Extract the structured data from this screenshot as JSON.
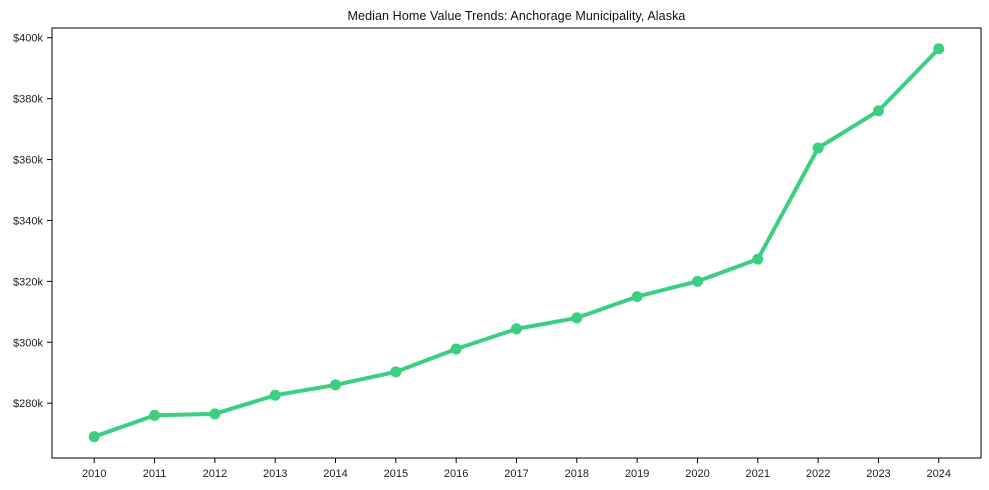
{
  "figure": {
    "background": "#ffffff",
    "spine_color": "#000000",
    "tick_color": "#000000",
    "tick_label_color": "#1f1f1f",
    "title_color": "#111111"
  },
  "chart_data": {
    "type": "line",
    "title": "Median Home Value Trends: Anchorage Municipality, Alaska",
    "xlabel": "",
    "ylabel": "",
    "grid": false,
    "legend": false,
    "xlim": [
      2009.3,
      2024.7
    ],
    "ylim": [
      262000,
      403200
    ],
    "xticks": [
      2010,
      2011,
      2012,
      2013,
      2014,
      2015,
      2016,
      2017,
      2018,
      2019,
      2020,
      2021,
      2022,
      2023,
      2024
    ],
    "xtick_labels": [
      "2010",
      "2011",
      "2012",
      "2013",
      "2014",
      "2015",
      "2016",
      "2017",
      "2018",
      "2019",
      "2020",
      "2021",
      "2022",
      "2023",
      "2024"
    ],
    "yticks": [
      280000,
      300000,
      320000,
      340000,
      360000,
      380000,
      400000
    ],
    "ytick_labels": [
      "$280k",
      "$300k",
      "$320k",
      "$340k",
      "$360k",
      "$380k",
      "$400k"
    ],
    "series": [
      {
        "name": "Median home value",
        "color": "#3bcf81",
        "marker": "circle",
        "x": [
          2010,
          2011,
          2012,
          2013,
          2014,
          2015,
          2016,
          2017,
          2018,
          2019,
          2020,
          2021,
          2022,
          2023,
          2024
        ],
        "values": [
          269000,
          276000,
          276500,
          282600,
          286000,
          290300,
          297800,
          304400,
          308000,
          315000,
          320000,
          327300,
          363800,
          376000,
          396400
        ]
      }
    ]
  }
}
